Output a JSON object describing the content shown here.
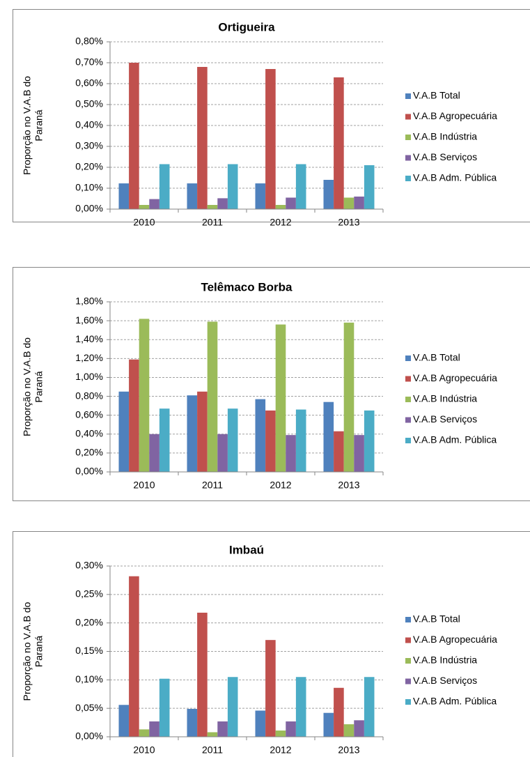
{
  "chart_data": [
    {
      "type": "bar",
      "title": "Ortigueira",
      "y_label": [
        "Proporção no V.A.B do",
        "Paraná"
      ],
      "categories": [
        "2010",
        "2011",
        "2012",
        "2013"
      ],
      "series": [
        {
          "name": "V.A.B Total",
          "color": "#4f81bd",
          "values": [
            0.123,
            0.123,
            0.123,
            0.14
          ]
        },
        {
          "name": "V.A.B Agropecuária",
          "color": "#c0504d",
          "values": [
            0.7,
            0.68,
            0.67,
            0.63
          ]
        },
        {
          "name": "V.A.B Indústria",
          "color": "#9bbb59",
          "values": [
            0.02,
            0.02,
            0.02,
            0.055
          ]
        },
        {
          "name": "V.A.B Serviços",
          "color": "#8064a2",
          "values": [
            0.048,
            0.052,
            0.055,
            0.06
          ]
        },
        {
          "name": "V.A.B Adm. Pública",
          "color": "#4bacc6",
          "values": [
            0.215,
            0.215,
            0.215,
            0.21
          ]
        }
      ],
      "ylim": [
        0,
        0.8
      ],
      "yticks": [
        {
          "value": 0,
          "label": "0,00%"
        },
        {
          "value": 0.1,
          "label": "0,10%"
        },
        {
          "value": 0.2,
          "label": "0,20%"
        },
        {
          "value": 0.3,
          "label": "0,30%"
        },
        {
          "value": 0.4,
          "label": "0,40%"
        },
        {
          "value": 0.5,
          "label": "0,50%"
        },
        {
          "value": 0.6,
          "label": "0,60%"
        },
        {
          "value": 0.7,
          "label": "0,70%"
        },
        {
          "value": 0.8,
          "label": "0,80%"
        }
      ],
      "grid": true,
      "legend": "right"
    },
    {
      "type": "bar",
      "title": "Telêmaco Borba",
      "y_label": [
        "Proporção no V.A.B do",
        "Paraná"
      ],
      "categories": [
        "2010",
        "2011",
        "2012",
        "2013"
      ],
      "series": [
        {
          "name": "V.A.B Total",
          "color": "#4f81bd",
          "values": [
            0.85,
            0.81,
            0.77,
            0.74
          ]
        },
        {
          "name": "V.A.B Agropecuária",
          "color": "#c0504d",
          "values": [
            1.19,
            0.85,
            0.65,
            0.43
          ]
        },
        {
          "name": "V.A.B Indústria",
          "color": "#9bbb59",
          "values": [
            1.62,
            1.59,
            1.56,
            1.58
          ]
        },
        {
          "name": "V.A.B Serviços",
          "color": "#8064a2",
          "values": [
            0.4,
            0.4,
            0.39,
            0.39
          ]
        },
        {
          "name": "V.A.B Adm. Pública",
          "color": "#4bacc6",
          "values": [
            0.67,
            0.67,
            0.66,
            0.65
          ]
        }
      ],
      "ylim": [
        0,
        1.8
      ],
      "yticks": [
        {
          "value": 0,
          "label": "0,00%"
        },
        {
          "value": 0.2,
          "label": "0,20%"
        },
        {
          "value": 0.4,
          "label": "0,40%"
        },
        {
          "value": 0.6,
          "label": "0,60%"
        },
        {
          "value": 0.8,
          "label": "0,80%"
        },
        {
          "value": 1.0,
          "label": "1,00%"
        },
        {
          "value": 1.2,
          "label": "1,20%"
        },
        {
          "value": 1.4,
          "label": "1,40%"
        },
        {
          "value": 1.6,
          "label": "1,60%"
        },
        {
          "value": 1.8,
          "label": "1,80%"
        }
      ],
      "grid": true,
      "legend": "right"
    },
    {
      "type": "bar",
      "title": "Imbaú",
      "y_label": [
        "Proporção no V.A.B do",
        "Paraná"
      ],
      "categories": [
        "2010",
        "2011",
        "2012",
        "2013"
      ],
      "series": [
        {
          "name": "V.A.B Total",
          "color": "#4f81bd",
          "values": [
            0.056,
            0.049,
            0.046,
            0.042
          ]
        },
        {
          "name": "V.A.B Agropecuária",
          "color": "#c0504d",
          "values": [
            0.282,
            0.218,
            0.17,
            0.086
          ]
        },
        {
          "name": "V.A.B Indústria",
          "color": "#9bbb59",
          "values": [
            0.013,
            0.008,
            0.011,
            0.022
          ]
        },
        {
          "name": "V.A.B Serviços",
          "color": "#8064a2",
          "values": [
            0.027,
            0.027,
            0.027,
            0.029
          ]
        },
        {
          "name": "V.A.B Adm. Pública",
          "color": "#4bacc6",
          "values": [
            0.102,
            0.105,
            0.105,
            0.105
          ]
        }
      ],
      "ylim": [
        0,
        0.3
      ],
      "yticks": [
        {
          "value": 0,
          "label": "0,00%"
        },
        {
          "value": 0.05,
          "label": "0,05%"
        },
        {
          "value": 0.1,
          "label": "0,10%"
        },
        {
          "value": 0.15,
          "label": "0,15%"
        },
        {
          "value": 0.2,
          "label": "0,20%"
        },
        {
          "value": 0.25,
          "label": "0,25%"
        },
        {
          "value": 0.3,
          "label": "0,30%"
        }
      ],
      "grid": true,
      "legend": "right"
    }
  ]
}
